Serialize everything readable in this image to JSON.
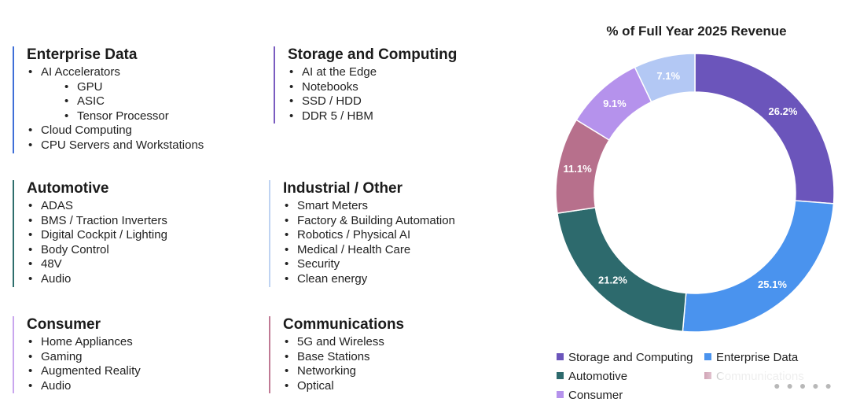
{
  "segments": [
    {
      "id": "enterprise",
      "title": "Enterprise Data",
      "color": "#3F6FD8",
      "items": [
        {
          "text": "AI Accelerators",
          "level": 0
        },
        {
          "text": "GPU",
          "level": 1
        },
        {
          "text": "ASIC",
          "level": 1
        },
        {
          "text": "Tensor Processor",
          "level": 1
        },
        {
          "text": "Cloud Computing",
          "level": 0
        },
        {
          "text": "CPU Servers and Workstations",
          "level": 0
        }
      ]
    },
    {
      "id": "storage",
      "title": "Storage and Computing",
      "color": "#7A5CC0",
      "items": [
        {
          "text": "AI at the Edge",
          "level": 0
        },
        {
          "text": "Notebooks",
          "level": 0
        },
        {
          "text": "SSD / HDD",
          "level": 0
        },
        {
          "text": "DDR 5 / HBM",
          "level": 0
        }
      ]
    },
    {
      "id": "automotive",
      "title": "Automotive",
      "color": "#2E6E6C",
      "items": [
        {
          "text": "ADAS",
          "level": 0
        },
        {
          "text": "BMS / Traction Inverters",
          "level": 0
        },
        {
          "text": "Digital Cockpit / Lighting",
          "level": 0
        },
        {
          "text": "Body Control",
          "level": 0
        },
        {
          "text": "48V",
          "level": 0
        },
        {
          "text": "Audio",
          "level": 0
        }
      ]
    },
    {
      "id": "industrial",
      "title": "Industrial / Other",
      "color": "#BFD3F2",
      "items": [
        {
          "text": "Smart Meters",
          "level": 0
        },
        {
          "text": "Factory & Building Automation",
          "level": 0
        },
        {
          "text": "Robotics / Physical AI",
          "level": 0
        },
        {
          "text": "Medical / Health Care",
          "level": 0
        },
        {
          "text": "Security",
          "level": 0
        },
        {
          "text": "Clean energy",
          "level": 0
        }
      ]
    },
    {
      "id": "consumer",
      "title": "Consumer",
      "color": "#C9A6EE",
      "items": [
        {
          "text": "Home Appliances",
          "level": 0
        },
        {
          "text": "Gaming",
          "level": 0
        },
        {
          "text": "Augmented Reality",
          "level": 0
        },
        {
          "text": "Audio",
          "level": 0
        }
      ]
    },
    {
      "id": "communications",
      "title": "Communications",
      "color": "#C07A95",
      "items": [
        {
          "text": "5G and Wireless",
          "level": 0
        },
        {
          "text": "Base Stations",
          "level": 0
        },
        {
          "text": "Networking",
          "level": 0
        },
        {
          "text": "Optical",
          "level": 0
        }
      ]
    }
  ],
  "chart_data": {
    "type": "pie",
    "donut": true,
    "title": "% of Full Year 2025 Revenue",
    "slices": [
      {
        "label": "Storage and Computing",
        "value": 26.2,
        "display": "26.2%",
        "color": "#6B55BB"
      },
      {
        "label": "Enterprise Data",
        "value": 25.1,
        "display": "25.1%",
        "color": "#4A93EE"
      },
      {
        "label": "Automotive",
        "value": 21.2,
        "display": "21.2%",
        "color": "#2D6A6D"
      },
      {
        "label": "Communications",
        "value": 11.1,
        "display": "11.1%",
        "color": "#B7708C"
      },
      {
        "label": "Consumer",
        "value": 9.1,
        "display": "9.1%",
        "color": "#B592EC"
      },
      {
        "label": "Industrial / Other",
        "value": 7.1,
        "display": "7.1%",
        "color": "#B3C8F4"
      }
    ],
    "start_angle": "12 o'clock",
    "direction": "clockwise",
    "legend_position": "bottom",
    "legend": [
      "Storage and Computing",
      "Enterprise Data",
      "Automotive",
      "Communications",
      "Consumer"
    ]
  }
}
